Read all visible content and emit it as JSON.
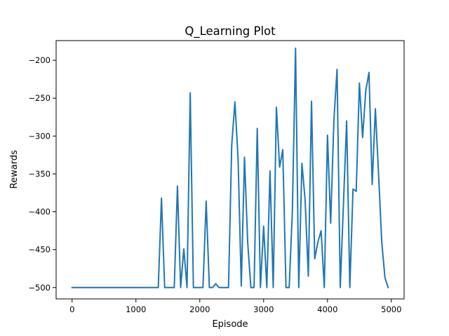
{
  "chart_data": {
    "type": "line",
    "title": "Q_Learning  Plot",
    "xlabel": "Episode",
    "ylabel": "Rewards",
    "xlim": [
      -250,
      5200
    ],
    "ylim": [
      -515,
      -174
    ],
    "xticks": [
      0,
      1000,
      2000,
      3000,
      4000,
      5000
    ],
    "yticks": [
      -500,
      -450,
      -400,
      -350,
      -300,
      -250,
      -200
    ],
    "xtick_labels": [
      "0",
      "1000",
      "2000",
      "3000",
      "4000",
      "5000"
    ],
    "ytick_labels": [
      "−500",
      "−450",
      "−400",
      "−350",
      "−300",
      "−250",
      "−200"
    ],
    "grid": false,
    "series": [
      {
        "color": "#1f77b4",
        "x": [
          0,
          50,
          100,
          150,
          200,
          250,
          300,
          350,
          400,
          450,
          500,
          550,
          600,
          650,
          700,
          750,
          800,
          850,
          900,
          950,
          1000,
          1050,
          1100,
          1150,
          1200,
          1250,
          1300,
          1350,
          1400,
          1450,
          1500,
          1550,
          1600,
          1650,
          1700,
          1750,
          1800,
          1850,
          1900,
          1950,
          2000,
          2050,
          2100,
          2150,
          2200,
          2250,
          2300,
          2350,
          2400,
          2450,
          2500,
          2550,
          2600,
          2650,
          2700,
          2750,
          2800,
          2850,
          2900,
          2950,
          3000,
          3050,
          3100,
          3150,
          3200,
          3250,
          3300,
          3350,
          3400,
          3450,
          3500,
          3550,
          3600,
          3650,
          3700,
          3750,
          3800,
          3850,
          3900,
          3950,
          4000,
          4050,
          4100,
          4150,
          4200,
          4250,
          4300,
          4350,
          4400,
          4450,
          4500,
          4550,
          4600,
          4650,
          4700,
          4750,
          4800,
          4850,
          4900,
          4950
        ],
        "y": [
          -500,
          -500,
          -500,
          -500,
          -500,
          -500,
          -500,
          -500,
          -500,
          -500,
          -500,
          -500,
          -500,
          -500,
          -500,
          -500,
          -500,
          -500,
          -500,
          -500,
          -500,
          -500,
          -500,
          -500,
          -500,
          -500,
          -500,
          -500,
          -382,
          -500,
          -500,
          -500,
          -500,
          -366,
          -500,
          -449,
          -500,
          -243,
          -500,
          -500,
          -500,
          -500,
          -386,
          -500,
          -500,
          -495,
          -500,
          -500,
          -500,
          -500,
          -312,
          -255,
          -330,
          -498,
          -328,
          -440,
          -500,
          -500,
          -290,
          -500,
          -419,
          -500,
          -346,
          -500,
          -262,
          -341,
          -318,
          -500,
          -500,
          -400,
          -184,
          -500,
          -336,
          -385,
          -485,
          -254,
          -462,
          -440,
          -425,
          -500,
          -299,
          -415,
          -280,
          -212,
          -500,
          -390,
          -280,
          -500,
          -370,
          -373,
          -230,
          -302,
          -240,
          -216,
          -364,
          -264,
          -350,
          -440,
          -487,
          -500
        ]
      }
    ]
  }
}
